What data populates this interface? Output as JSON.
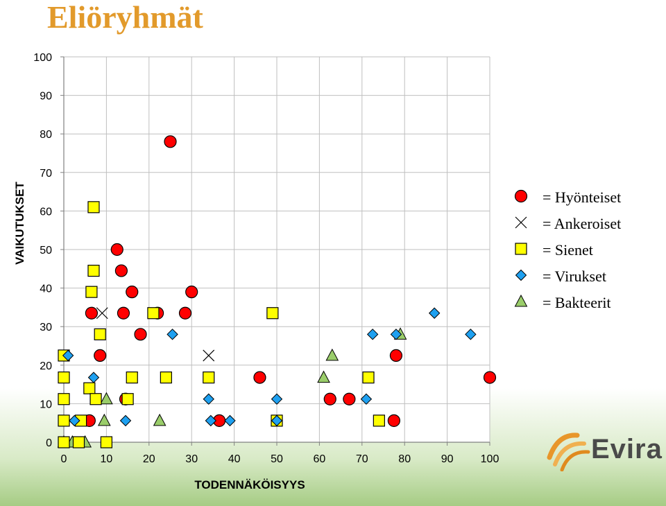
{
  "slide": {
    "title": "Eliöryhmät"
  },
  "logo": {
    "text": "Evira"
  },
  "legend": [
    {
      "symbol": "circle",
      "color": "#ff0000",
      "eq": "=",
      "label": "Hyönteiset",
      "icon": "red-circle-icon"
    },
    {
      "symbol": "x",
      "color": "#000000",
      "eq": "=",
      "label": "Ankeroiset",
      "icon": "x-mark-icon"
    },
    {
      "symbol": "square",
      "color": "#ffff00",
      "eq": "=",
      "label": "Sienet",
      "icon": "yellow-square-icon"
    },
    {
      "symbol": "diamond",
      "color": "#1ea0f0",
      "eq": "=",
      "label": "Virukset",
      "icon": "blue-diamond-icon"
    },
    {
      "symbol": "triangle",
      "color": "#9acd6a",
      "eq": "=",
      "label": "Bakteerit",
      "icon": "green-triangle-icon"
    }
  ],
  "chart_data": {
    "type": "scatter",
    "xlabel": "TODENNÄKÖISYYS",
    "ylabel": "VAIKUTUKSET",
    "xlim": [
      0,
      100
    ],
    "ylim": [
      0,
      100
    ],
    "xticks": [
      "0",
      "10",
      "20",
      "30",
      "40",
      "50",
      "60",
      "70",
      "80",
      "90",
      "100"
    ],
    "yticks": [
      "0",
      "10",
      "20",
      "30",
      "40",
      "50",
      "60",
      "70",
      "80",
      "90",
      "100"
    ],
    "grid": true,
    "legend_position": "right",
    "series": [
      {
        "name": "Hyönteiset",
        "marker": "circle",
        "color": "#ff0000",
        "points": [
          [
            25,
            78
          ],
          [
            12.5,
            50
          ],
          [
            13.5,
            44.5
          ],
          [
            16,
            39
          ],
          [
            30,
            39
          ],
          [
            6.5,
            33.5
          ],
          [
            14,
            33.5
          ],
          [
            22,
            33.5
          ],
          [
            28.5,
            33.5
          ],
          [
            18,
            28
          ],
          [
            8.5,
            22.5
          ],
          [
            46,
            16.8
          ],
          [
            78,
            22.5
          ],
          [
            100,
            16.8
          ],
          [
            14.5,
            11.2
          ],
          [
            62.5,
            11.2
          ],
          [
            67,
            11.2
          ],
          [
            6,
            5.6
          ],
          [
            36.5,
            5.6
          ],
          [
            77.5,
            5.6
          ]
        ]
      },
      {
        "name": "Ankeroiset",
        "marker": "x",
        "color": "#000000",
        "points": [
          [
            9,
            33.5
          ],
          [
            34,
            22.5
          ]
        ]
      },
      {
        "name": "Sienet",
        "marker": "square",
        "color": "#ffff00",
        "points": [
          [
            7,
            61
          ],
          [
            7,
            44.5
          ],
          [
            6.5,
            39
          ],
          [
            21,
            33.5
          ],
          [
            49,
            33.5
          ],
          [
            8.5,
            28
          ],
          [
            0,
            22.5
          ],
          [
            0,
            16.8
          ],
          [
            16,
            16.8
          ],
          [
            24,
            16.8
          ],
          [
            34,
            16.8
          ],
          [
            71.5,
            16.8
          ],
          [
            6,
            14
          ],
          [
            0,
            11.2
          ],
          [
            7.5,
            11.2
          ],
          [
            15,
            11.2
          ],
          [
            0,
            5.6
          ],
          [
            4,
            5.6
          ],
          [
            50,
            5.6
          ],
          [
            74,
            5.6
          ],
          [
            0,
            0
          ],
          [
            3.5,
            0
          ],
          [
            10,
            0
          ]
        ]
      },
      {
        "name": "Virukset",
        "marker": "diamond",
        "color": "#1ea0f0",
        "points": [
          [
            1,
            22.5
          ],
          [
            7,
            16.8
          ],
          [
            25.5,
            28
          ],
          [
            72.5,
            28
          ],
          [
            78,
            28
          ],
          [
            87,
            33.5
          ],
          [
            95.5,
            28
          ],
          [
            34,
            11.2
          ],
          [
            50,
            11.2
          ],
          [
            71,
            11.2
          ],
          [
            2.5,
            5.6
          ],
          [
            14.5,
            5.6
          ],
          [
            34.5,
            5.6
          ],
          [
            39,
            5.6
          ],
          [
            50,
            5.6
          ]
        ]
      },
      {
        "name": "Bakteerit",
        "marker": "triangle",
        "color": "#9acd6a",
        "points": [
          [
            0,
            0
          ],
          [
            2,
            0
          ],
          [
            5,
            0
          ],
          [
            10,
            11.2
          ],
          [
            9.5,
            5.6
          ],
          [
            22.5,
            5.6
          ],
          [
            63,
            22.5
          ],
          [
            61,
            16.8
          ],
          [
            79,
            28
          ]
        ]
      }
    ]
  }
}
